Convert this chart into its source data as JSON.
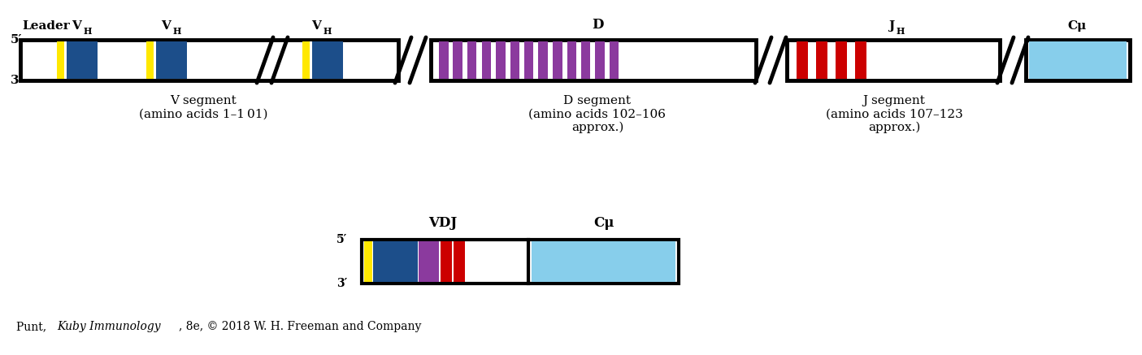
{
  "bg_color": "#ffffff",
  "fig_width": 14.05,
  "fig_height": 4.37,
  "dpi": 100,
  "yellow_color": "#FFE800",
  "blue_color": "#1C4E8A",
  "purple_color": "#8B3A9E",
  "red_color": "#CC0000",
  "lightblue_color": "#87CEEB",
  "white_color": "#ffffff",
  "black_color": "#000000",
  "v_segment_label_line1": "V segment",
  "v_segment_label_line2": "(amino acids 1–1 01)",
  "d_segment_label_line1": "D segment",
  "d_segment_label_line2": "(amino acids 102–106",
  "d_segment_label_line3": "approx.)",
  "j_segment_label_line1": "J segment",
  "j_segment_label_line2": "(amino acids 107–123",
  "j_segment_label_line3": "approx.)"
}
